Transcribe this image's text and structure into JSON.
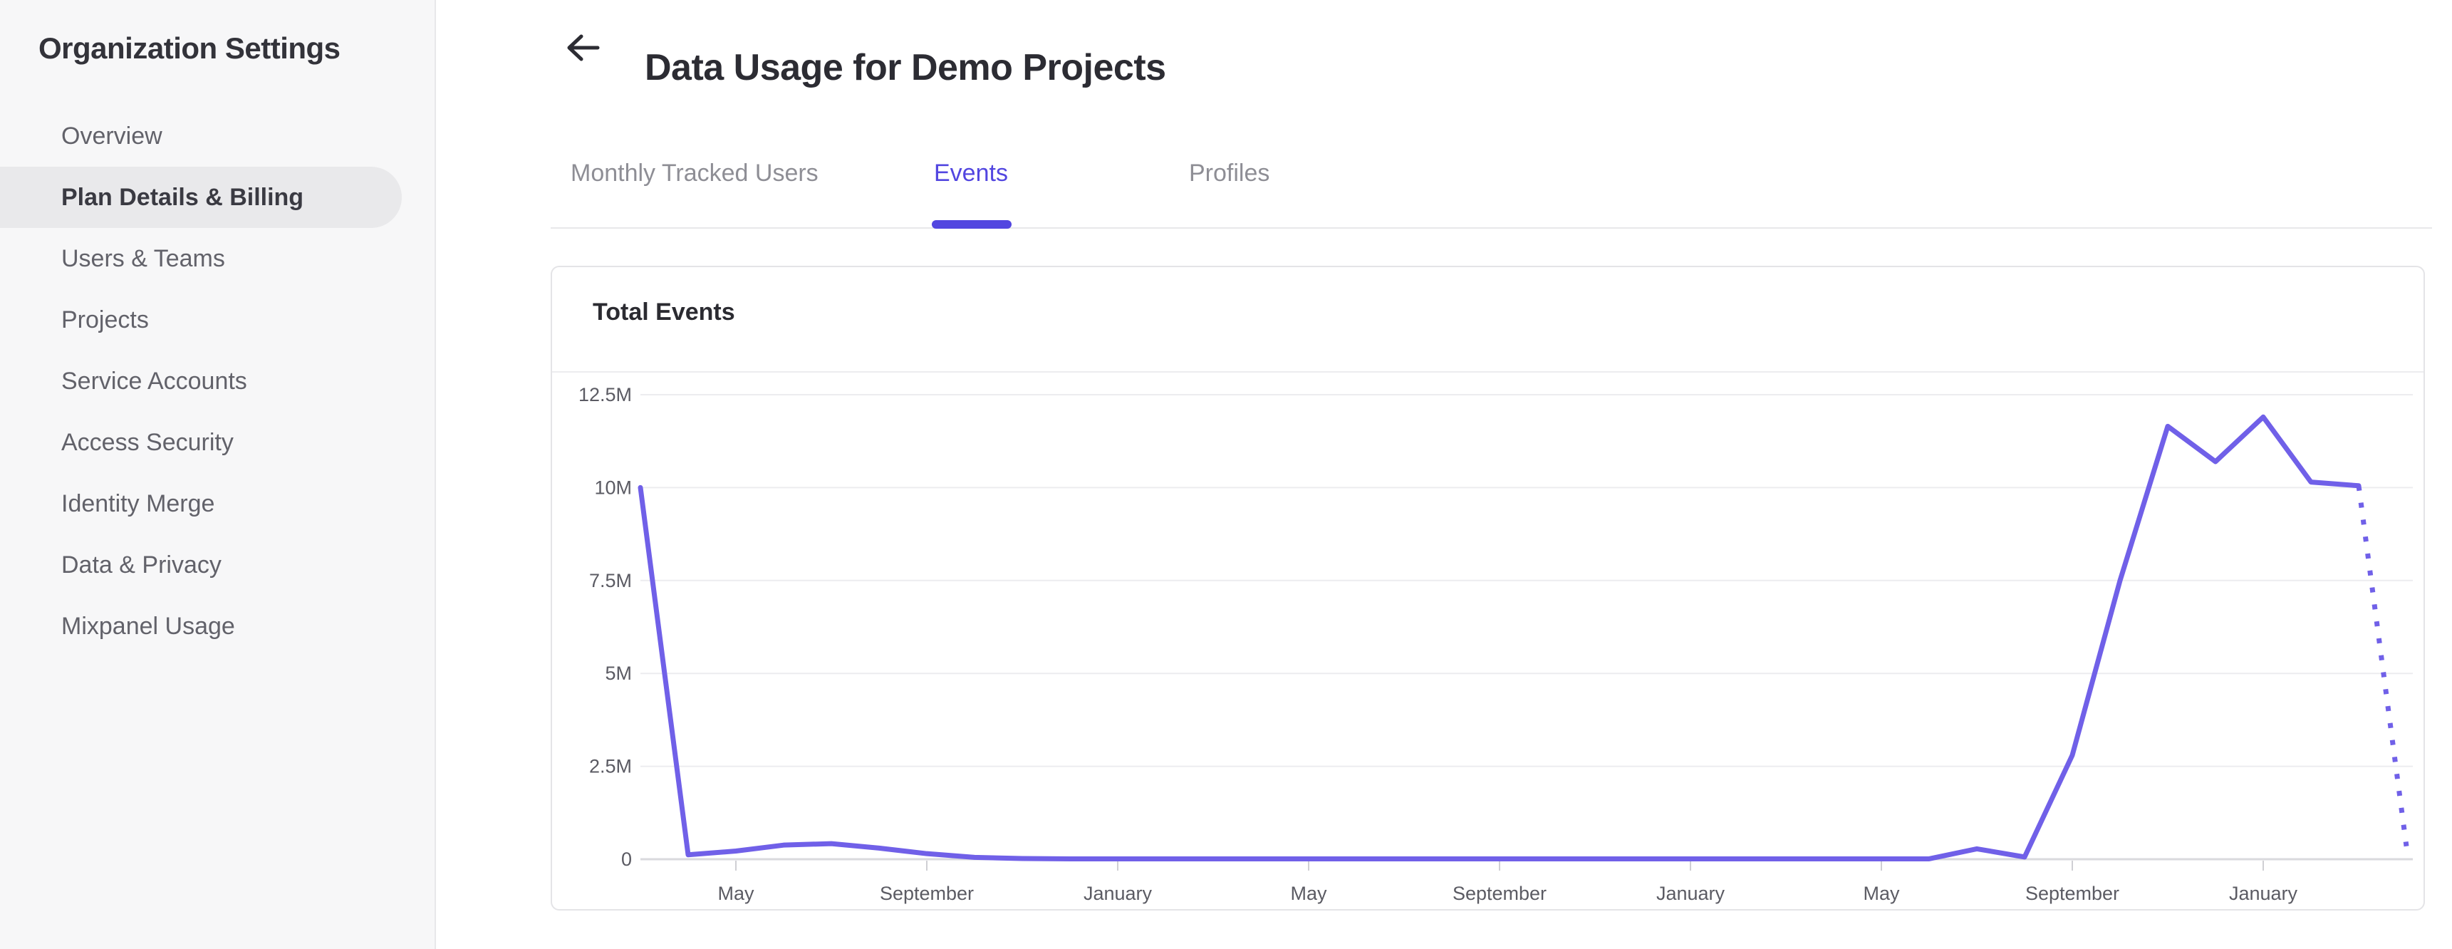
{
  "sidebar": {
    "title": "Organization Settings",
    "items": [
      {
        "label": "Overview",
        "selected": false
      },
      {
        "label": "Plan Details & Billing",
        "selected": true
      },
      {
        "label": "Users & Teams",
        "selected": false
      },
      {
        "label": "Projects",
        "selected": false
      },
      {
        "label": "Service Accounts",
        "selected": false
      },
      {
        "label": "Access Security",
        "selected": false
      },
      {
        "label": "Identity Merge",
        "selected": false
      },
      {
        "label": "Data & Privacy",
        "selected": false
      },
      {
        "label": "Mixpanel Usage",
        "selected": false
      }
    ]
  },
  "header": {
    "back_icon": "arrow-left-icon",
    "title": "Data Usage for Demo Projects"
  },
  "tabs": [
    {
      "label": "Monthly Tracked Users",
      "active": false
    },
    {
      "label": "Events",
      "active": true
    },
    {
      "label": "Profiles",
      "active": false
    }
  ],
  "card": {
    "title": "Total Events"
  },
  "colors": {
    "accent_purple": "#5246e0",
    "chart_line_purple": "#7060e8",
    "sidebar_bg": "#f7f7f8",
    "selected_pill": "#e9e9eb",
    "card_border": "#e4e4e7",
    "gridline": "#ececef",
    "axis_line": "#d9d9dd",
    "axis_text": "#5b5b63",
    "inactive_tab_text": "#8e8e95",
    "dark_text": "#2c2c33"
  },
  "chart_data": {
    "type": "line",
    "title": "Total Events",
    "xlabel": "",
    "ylabel": "",
    "legend": "none",
    "grid": "horizontal-only",
    "ylim_events": [
      0,
      12500000
    ],
    "y_tick_labels": [
      "12.5M",
      "10M",
      "7.5M",
      "5M",
      "2.5M",
      "0"
    ],
    "y_tick_values_millions": [
      12.5,
      10,
      7.5,
      5,
      2.5,
      0
    ],
    "x_tick_labels": [
      "May",
      "September",
      "January",
      "May",
      "September",
      "January",
      "May",
      "September",
      "January"
    ],
    "x_tick_month_indices": [
      2,
      6,
      10,
      14,
      18,
      22,
      26,
      30,
      34
    ],
    "series": [
      {
        "name": "Total Events",
        "color": "#7060e8",
        "points_monthly_millions": [
          10,
          0.12,
          0.22,
          0.38,
          0.42,
          0.3,
          0.15,
          0.05,
          0.02,
          0.01,
          0.01,
          0.01,
          0.01,
          0.01,
          0.01,
          0.01,
          0.01,
          0.01,
          0.01,
          0.01,
          0.01,
          0.01,
          0.01,
          0.01,
          0.01,
          0.01,
          0.01,
          0.01,
          0.28,
          0.06,
          2.8,
          7.5,
          11.65,
          10.7,
          11.9,
          10.15,
          10.05,
          0.35
        ],
        "dashed_from_index": 36
      }
    ]
  }
}
